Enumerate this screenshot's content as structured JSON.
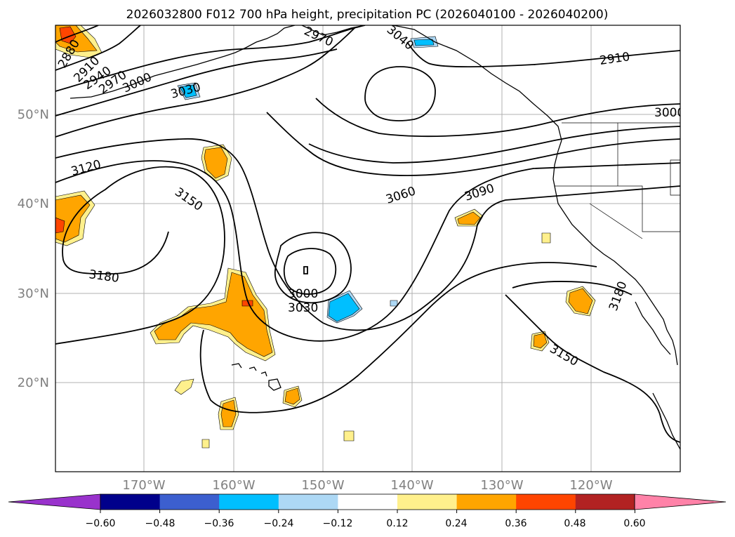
{
  "title": "2026032800 F012 700 hPa height, precipitation PC (2026040100 - 2026040200)",
  "map": {
    "lat_labels": [
      "50°N",
      "40°N",
      "30°N",
      "20°N"
    ],
    "lon_labels": [
      "170°W",
      "160°W",
      "150°W",
      "140°W",
      "130°W",
      "120°W"
    ],
    "grid": true
  },
  "contour_labels": [
    "2880",
    "2910",
    "2940",
    "2970",
    "3000",
    "3030",
    "3120",
    "3150",
    "3180",
    "3000",
    "3030",
    "3060",
    "3090",
    "2970",
    "3040",
    "2910",
    "3000",
    "3180",
    "3150"
  ],
  "colorbar": {
    "ticks": [
      "−0.60",
      "−0.48",
      "−0.36",
      "−0.24",
      "−0.12",
      "0.12",
      "0.24",
      "0.36",
      "0.48",
      "0.60"
    ],
    "colors": [
      "#9932cc",
      "#00008b",
      "#3c5fcf",
      "#00bfff",
      "#add8f5",
      "#ffffff",
      "#fff08c",
      "#ffa500",
      "#ff4500",
      "#b22222",
      "#ff82a8"
    ]
  }
}
